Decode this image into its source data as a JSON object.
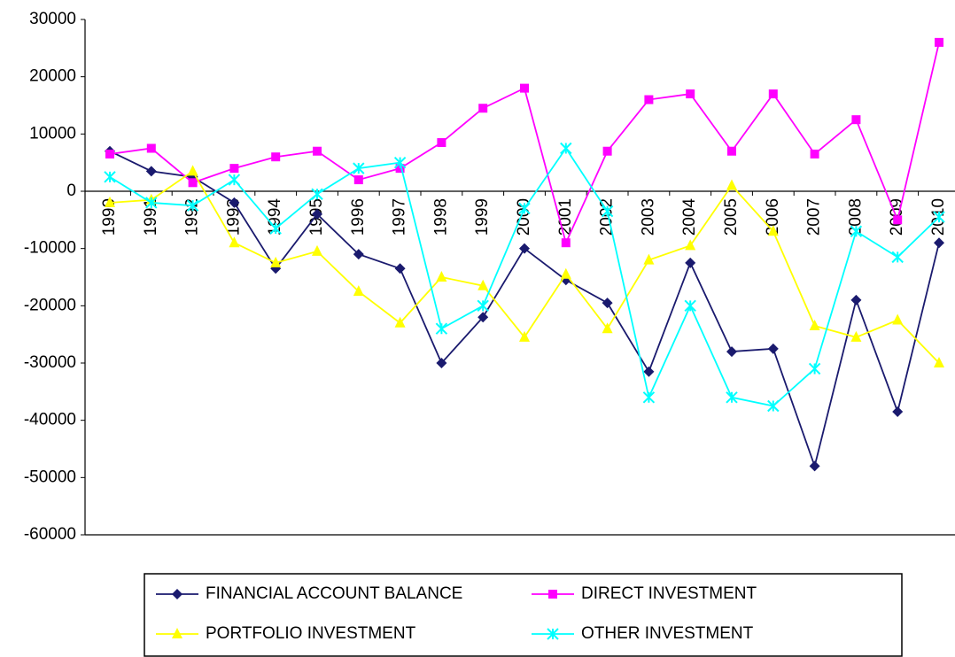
{
  "chart_data": {
    "type": "line",
    "categories": [
      "1990",
      "1991",
      "1992",
      "1993",
      "1994",
      "1995",
      "1996",
      "1997",
      "1998",
      "1999",
      "2000",
      "2001",
      "2002",
      "2003",
      "2004",
      "2005",
      "2006",
      "2007",
      "2008",
      "2009",
      "2010"
    ],
    "series": [
      {
        "name": "FINANCIAL ACCOUNT BALANCE",
        "color": "#1a1a6e",
        "marker": "diamond",
        "values": [
          7000,
          3500,
          2500,
          -2000,
          -13500,
          -4000,
          -11000,
          -13500,
          -30000,
          -22000,
          -10000,
          -15500,
          -19500,
          -31500,
          -12500,
          -28000,
          -27500,
          -48000,
          -19000,
          -38500,
          -9000
        ]
      },
      {
        "name": "DIRECT INVESTMENT",
        "color": "#ff00ff",
        "marker": "square",
        "values": [
          6500,
          7500,
          1500,
          4000,
          6000,
          7000,
          2000,
          4000,
          8500,
          14500,
          18000,
          -9000,
          7000,
          16000,
          17000,
          7000,
          17000,
          6500,
          12500,
          -5000,
          26000
        ]
      },
      {
        "name": "PORTFOLIO INVESTMENT",
        "color": "#ffff00",
        "marker": "triangle",
        "values": [
          -2000,
          -1500,
          3500,
          -9000,
          -12500,
          -10500,
          -17500,
          -23000,
          -15000,
          -16500,
          -25500,
          -14500,
          -24000,
          -12000,
          -9500,
          1000,
          -7000,
          -23500,
          -25500,
          -22500,
          -30000
        ]
      },
      {
        "name": "OTHER INVESTMENT",
        "color": "#00ffff",
        "marker": "x",
        "values": [
          2500,
          -2000,
          -2500,
          2000,
          -6500,
          -500,
          4000,
          5000,
          -24000,
          -20000,
          -3000,
          7500,
          -3500,
          -36000,
          -20000,
          -36000,
          -37500,
          -31000,
          -7000,
          -11500,
          -4500
        ]
      }
    ],
    "ylim": [
      -60000,
      30000
    ],
    "yticks": [
      -60000,
      -50000,
      -40000,
      -30000,
      -20000,
      -10000,
      0,
      10000,
      20000,
      30000
    ],
    "grid": false,
    "legend": "bottom"
  }
}
